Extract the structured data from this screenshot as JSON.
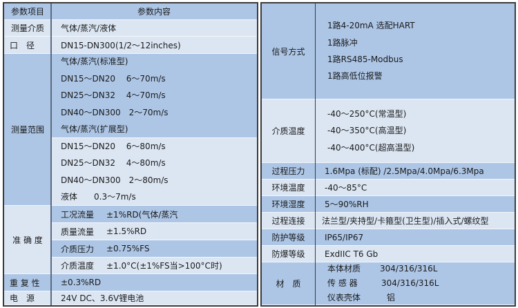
{
  "left": {
    "header": {
      "item": "参数项目",
      "content": "参数内容"
    },
    "medium": {
      "label": "测量介质",
      "value": "气体/蒸汽/液体"
    },
    "diameter": {
      "label": "口　径",
      "value": "DN15-DN300(1/2～12inches)"
    },
    "range": {
      "label": "测量范围",
      "standard": [
        "气体/蒸汽(标准型)",
        "DN15～DN20　 6～70m/s",
        "DN25～DN32　 4～70m/s",
        "DN40～DN300　2～70m/s",
        "气体/蒸汽(扩展型)"
      ],
      "extended": [
        "DN15～DN20　 6～80m/s",
        "DN25～DN32　 4～80m/s",
        "DN40～DN300　2～80m/s",
        "液体　　0.3～7m/s"
      ]
    },
    "accuracy": {
      "label": "准 确 度",
      "rows": [
        {
          "name": "工况流量",
          "value": "±1%RD(气体/蒸汽"
        },
        {
          "name": "质量流量",
          "value": "±1.5%RD"
        },
        {
          "name": "介质压力",
          "value": "±0.75%FS"
        },
        {
          "name": "介质温度",
          "value": "±1.0°C(±1%FS当>100°C时)"
        }
      ]
    },
    "repeatability": {
      "label": "重 复 性",
      "value": "±0.3%RD"
    },
    "power": {
      "label": "电　源",
      "value": "24V DC、3.6V锂电池"
    }
  },
  "right": {
    "signal": {
      "label": "信号方式",
      "values": [
        "1路4-20mA 选配HART",
        "1路脉冲",
        "1路RS485-Modbus",
        "1路高低位报警"
      ]
    },
    "medium_temp": {
      "label": "介质温度",
      "values": [
        "-40～250°C(常温型)",
        "-40～350°C(高温型)",
        "-40～400°C(超高温型)"
      ]
    },
    "rows": [
      {
        "label": "过程压力",
        "value": "1.6Mpa (标配) /2.5Mpa/4.0Mpa/6.3Mpa"
      },
      {
        "label": "环境温度",
        "value": "-40～85°C"
      },
      {
        "label": "环境湿度",
        "value": "5～90%RH"
      },
      {
        "label": "过程连接",
        "value": "法兰型/夹持型/卡箍型(卫生型)/插入式/螺纹型"
      },
      {
        "label": "防护等级",
        "value": "IP65/IP67"
      },
      {
        "label": "防爆等级",
        "value": "ExdIIC T6 Gb"
      }
    ],
    "material": {
      "label": "材　质",
      "rows": [
        {
          "name": "本体材质",
          "value": "304/316/316L"
        },
        {
          "name": "传 感 器",
          "value": "304/316/316L"
        },
        {
          "name": "仪表壳体",
          "value": "铝"
        }
      ]
    }
  },
  "colors": {
    "dark_row": "#adc6e6",
    "light_row": "#dce6f3",
    "border": "#3a3a3a"
  }
}
